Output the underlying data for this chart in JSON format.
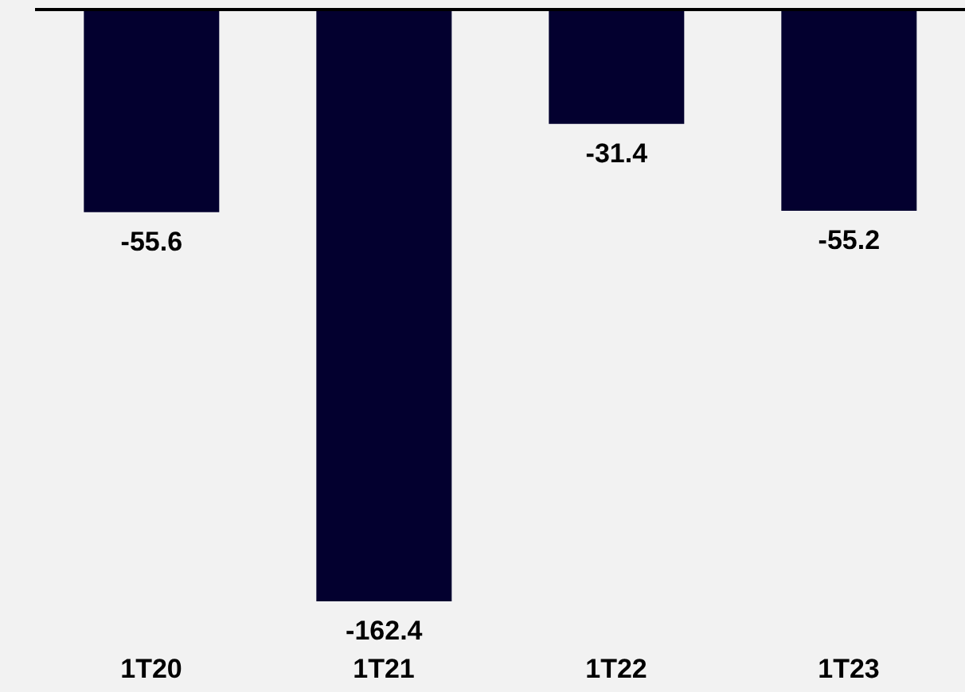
{
  "chart_data": {
    "type": "bar",
    "categories": [
      "1T20",
      "1T21",
      "1T22",
      "1T23"
    ],
    "values": [
      -55.6,
      -162.4,
      -31.4,
      -55.2
    ],
    "color": "#03002f",
    "data_labels": true,
    "grid": false,
    "legend": false
  }
}
